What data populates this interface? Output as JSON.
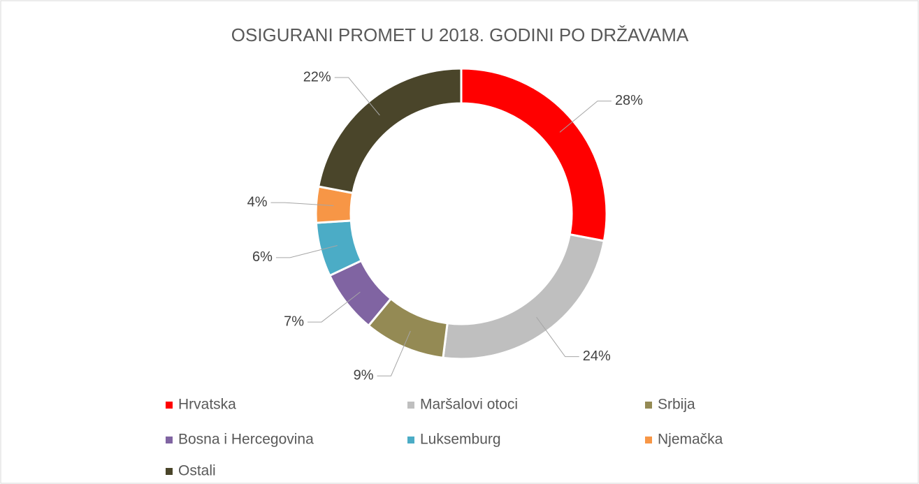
{
  "chart_data": {
    "type": "donut",
    "title": "OSIGURANI PROMET U 2018. GODINI PO DRŽAVAMA",
    "categories": [
      "Hrvatska",
      "Maršalovi otoci",
      "Srbija",
      "Bosna i Hercegovina",
      "Luksemburg",
      "Njemačka",
      "Ostali"
    ],
    "values": [
      28,
      24,
      9,
      7,
      6,
      4,
      22
    ],
    "value_labels": [
      "28%",
      "24%",
      "9%",
      "7%",
      "6%",
      "4%",
      "22%"
    ],
    "colors": [
      "#ff0000",
      "#bfbfbf",
      "#948a54",
      "#8064a2",
      "#4bacc6",
      "#f79646",
      "#4a452a"
    ],
    "legend": "bottom"
  }
}
